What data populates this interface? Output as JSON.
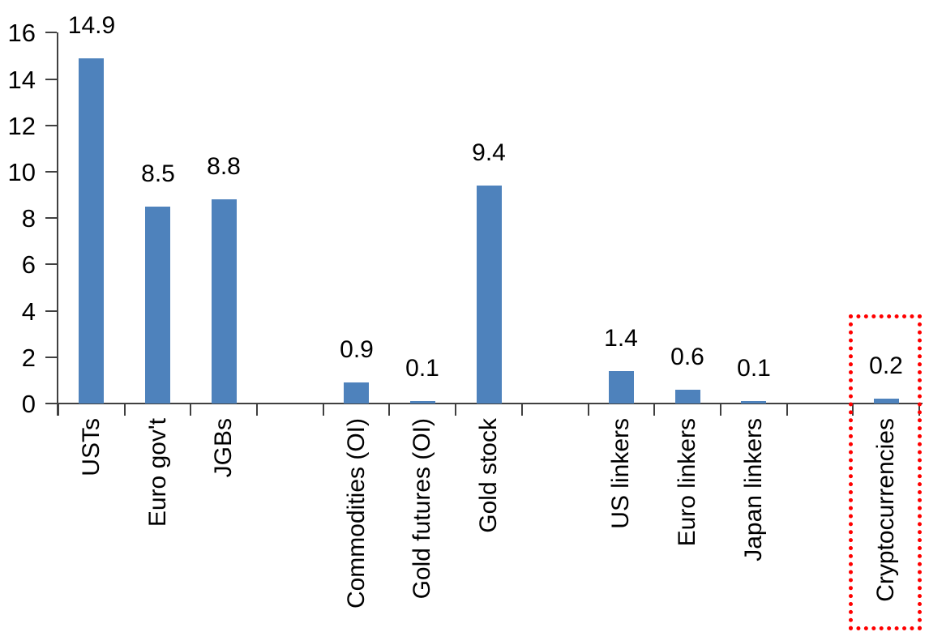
{
  "chart_data": {
    "type": "bar",
    "title": "",
    "xlabel": "",
    "ylabel": "",
    "ylim": [
      0,
      16
    ],
    "ytick_labels": [
      "0",
      "2",
      "4",
      "6",
      "8",
      "10",
      "12",
      "14",
      "16"
    ],
    "yticks": [
      0,
      2,
      4,
      6,
      8,
      10,
      12,
      14,
      16
    ],
    "grid": false,
    "legend": false,
    "bar_color": "#4E82BC",
    "axis_color": "#404040",
    "label_color": "#000000",
    "total_slots": 13,
    "bars": [
      {
        "label": "USTs",
        "value": 14.9,
        "value_label": "14.9",
        "slot": 0
      },
      {
        "label": "Euro gov't",
        "value": 8.5,
        "value_label": "8.5",
        "slot": 1
      },
      {
        "label": "JGBs",
        "value": 8.8,
        "value_label": "8.8",
        "slot": 2
      },
      {
        "label": "Commodities (OI)",
        "value": 0.9,
        "value_label": "0.9",
        "slot": 4
      },
      {
        "label": "Gold futures (OI)",
        "value": 0.1,
        "value_label": "0.1",
        "slot": 5
      },
      {
        "label": "Gold stock",
        "value": 9.4,
        "value_label": "9.4",
        "slot": 6
      },
      {
        "label": "US linkers",
        "value": 1.4,
        "value_label": "1.4",
        "slot": 8
      },
      {
        "label": "Euro linkers",
        "value": 0.6,
        "value_label": "0.6",
        "slot": 9
      },
      {
        "label": "Japan linkers",
        "value": 0.1,
        "value_label": "0.1",
        "slot": 10
      },
      {
        "label": "Cryptocurrencies",
        "value": 0.2,
        "value_label": "0.2",
        "slot": 12
      }
    ],
    "highlight": {
      "category": "Cryptocurrencies",
      "shape": "dotted-rectangle",
      "color": "#FF0000"
    }
  }
}
